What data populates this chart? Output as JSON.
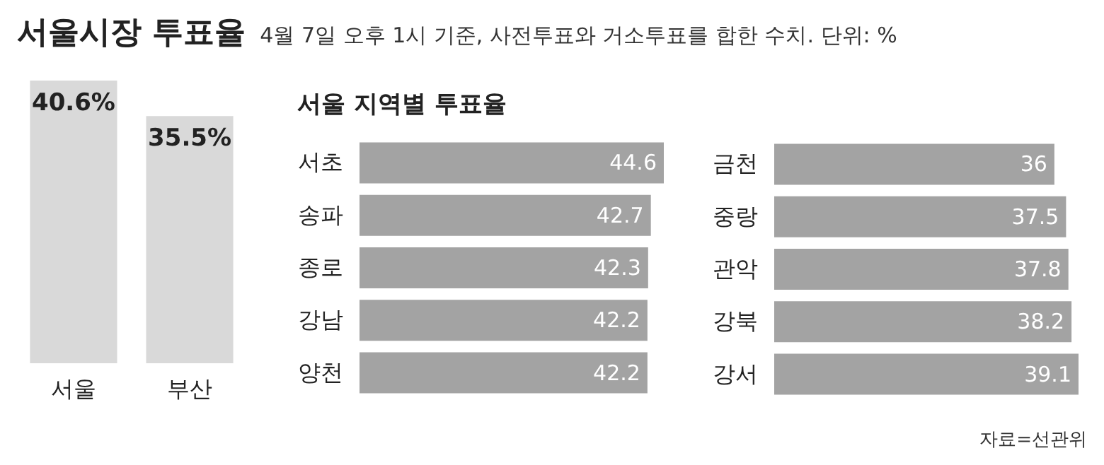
{
  "chart_data": [
    {
      "type": "bar",
      "title": "서울시장 투표율",
      "categories": [
        "서울",
        "부산"
      ],
      "values": [
        40.6,
        35.5
      ],
      "value_labels": [
        "40.6%",
        "35.5%"
      ],
      "color": "#d9d9d9"
    },
    {
      "type": "bar",
      "orientation": "horizontal",
      "title": "서울 지역별 투표율",
      "subtitle": "4월 7일 오후 1시 기준, 사전투표와 거소투표를 합한 수치. 단위: %",
      "categories": [
        "서초",
        "송파",
        "종로",
        "강남",
        "양천"
      ],
      "values": [
        44.6,
        42.7,
        42.3,
        42.2,
        42.2
      ],
      "data_labels": true,
      "color": "#a3a3a3"
    },
    {
      "type": "bar",
      "orientation": "horizontal",
      "categories": [
        "금천",
        "중랑",
        "관악",
        "강북",
        "강서"
      ],
      "values": [
        36,
        37.5,
        37.8,
        38.2,
        39.1
      ],
      "data_labels": true,
      "color": "#a3a3a3",
      "annotations": [
        "자료=선관위"
      ]
    }
  ]
}
